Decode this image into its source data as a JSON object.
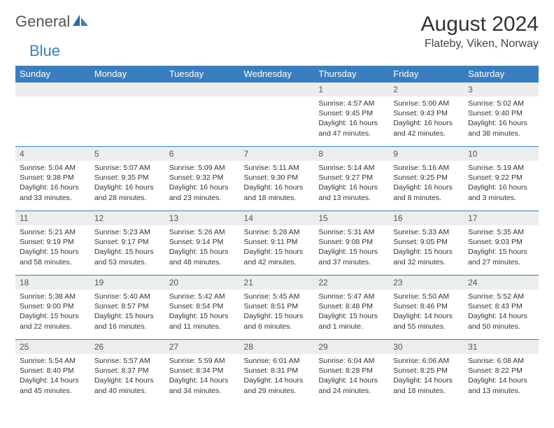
{
  "brand": {
    "part1": "General",
    "part2": "Blue"
  },
  "title": "August 2024",
  "location": "Flateby, Viken, Norway",
  "colors": {
    "accent": "#3a7ebf",
    "header_bg": "#3a7ebf",
    "row_bg": "#eceded"
  },
  "dayHeaders": [
    "Sunday",
    "Monday",
    "Tuesday",
    "Wednesday",
    "Thursday",
    "Friday",
    "Saturday"
  ],
  "weeks": [
    [
      {
        "n": "",
        "sr": "",
        "ss": "",
        "dl": ""
      },
      {
        "n": "",
        "sr": "",
        "ss": "",
        "dl": ""
      },
      {
        "n": "",
        "sr": "",
        "ss": "",
        "dl": ""
      },
      {
        "n": "",
        "sr": "",
        "ss": "",
        "dl": ""
      },
      {
        "n": "1",
        "sr": "Sunrise: 4:57 AM",
        "ss": "Sunset: 9:45 PM",
        "dl": "Daylight: 16 hours and 47 minutes."
      },
      {
        "n": "2",
        "sr": "Sunrise: 5:00 AM",
        "ss": "Sunset: 9:43 PM",
        "dl": "Daylight: 16 hours and 42 minutes."
      },
      {
        "n": "3",
        "sr": "Sunrise: 5:02 AM",
        "ss": "Sunset: 9:40 PM",
        "dl": "Daylight: 16 hours and 38 minutes."
      }
    ],
    [
      {
        "n": "4",
        "sr": "Sunrise: 5:04 AM",
        "ss": "Sunset: 9:38 PM",
        "dl": "Daylight: 16 hours and 33 minutes."
      },
      {
        "n": "5",
        "sr": "Sunrise: 5:07 AM",
        "ss": "Sunset: 9:35 PM",
        "dl": "Daylight: 16 hours and 28 minutes."
      },
      {
        "n": "6",
        "sr": "Sunrise: 5:09 AM",
        "ss": "Sunset: 9:32 PM",
        "dl": "Daylight: 16 hours and 23 minutes."
      },
      {
        "n": "7",
        "sr": "Sunrise: 5:11 AM",
        "ss": "Sunset: 9:30 PM",
        "dl": "Daylight: 16 hours and 18 minutes."
      },
      {
        "n": "8",
        "sr": "Sunrise: 5:14 AM",
        "ss": "Sunset: 9:27 PM",
        "dl": "Daylight: 16 hours and 13 minutes."
      },
      {
        "n": "9",
        "sr": "Sunrise: 5:16 AM",
        "ss": "Sunset: 9:25 PM",
        "dl": "Daylight: 16 hours and 8 minutes."
      },
      {
        "n": "10",
        "sr": "Sunrise: 5:19 AM",
        "ss": "Sunset: 9:22 PM",
        "dl": "Daylight: 16 hours and 3 minutes."
      }
    ],
    [
      {
        "n": "11",
        "sr": "Sunrise: 5:21 AM",
        "ss": "Sunset: 9:19 PM",
        "dl": "Daylight: 15 hours and 58 minutes."
      },
      {
        "n": "12",
        "sr": "Sunrise: 5:23 AM",
        "ss": "Sunset: 9:17 PM",
        "dl": "Daylight: 15 hours and 53 minutes."
      },
      {
        "n": "13",
        "sr": "Sunrise: 5:26 AM",
        "ss": "Sunset: 9:14 PM",
        "dl": "Daylight: 15 hours and 48 minutes."
      },
      {
        "n": "14",
        "sr": "Sunrise: 5:28 AM",
        "ss": "Sunset: 9:11 PM",
        "dl": "Daylight: 15 hours and 42 minutes."
      },
      {
        "n": "15",
        "sr": "Sunrise: 5:31 AM",
        "ss": "Sunset: 9:08 PM",
        "dl": "Daylight: 15 hours and 37 minutes."
      },
      {
        "n": "16",
        "sr": "Sunrise: 5:33 AM",
        "ss": "Sunset: 9:05 PM",
        "dl": "Daylight: 15 hours and 32 minutes."
      },
      {
        "n": "17",
        "sr": "Sunrise: 5:35 AM",
        "ss": "Sunset: 9:03 PM",
        "dl": "Daylight: 15 hours and 27 minutes."
      }
    ],
    [
      {
        "n": "18",
        "sr": "Sunrise: 5:38 AM",
        "ss": "Sunset: 9:00 PM",
        "dl": "Daylight: 15 hours and 22 minutes."
      },
      {
        "n": "19",
        "sr": "Sunrise: 5:40 AM",
        "ss": "Sunset: 8:57 PM",
        "dl": "Daylight: 15 hours and 16 minutes."
      },
      {
        "n": "20",
        "sr": "Sunrise: 5:42 AM",
        "ss": "Sunset: 8:54 PM",
        "dl": "Daylight: 15 hours and 11 minutes."
      },
      {
        "n": "21",
        "sr": "Sunrise: 5:45 AM",
        "ss": "Sunset: 8:51 PM",
        "dl": "Daylight: 15 hours and 6 minutes."
      },
      {
        "n": "22",
        "sr": "Sunrise: 5:47 AM",
        "ss": "Sunset: 8:48 PM",
        "dl": "Daylight: 15 hours and 1 minute."
      },
      {
        "n": "23",
        "sr": "Sunrise: 5:50 AM",
        "ss": "Sunset: 8:46 PM",
        "dl": "Daylight: 14 hours and 55 minutes."
      },
      {
        "n": "24",
        "sr": "Sunrise: 5:52 AM",
        "ss": "Sunset: 8:43 PM",
        "dl": "Daylight: 14 hours and 50 minutes."
      }
    ],
    [
      {
        "n": "25",
        "sr": "Sunrise: 5:54 AM",
        "ss": "Sunset: 8:40 PM",
        "dl": "Daylight: 14 hours and 45 minutes."
      },
      {
        "n": "26",
        "sr": "Sunrise: 5:57 AM",
        "ss": "Sunset: 8:37 PM",
        "dl": "Daylight: 14 hours and 40 minutes."
      },
      {
        "n": "27",
        "sr": "Sunrise: 5:59 AM",
        "ss": "Sunset: 8:34 PM",
        "dl": "Daylight: 14 hours and 34 minutes."
      },
      {
        "n": "28",
        "sr": "Sunrise: 6:01 AM",
        "ss": "Sunset: 8:31 PM",
        "dl": "Daylight: 14 hours and 29 minutes."
      },
      {
        "n": "29",
        "sr": "Sunrise: 6:04 AM",
        "ss": "Sunset: 8:28 PM",
        "dl": "Daylight: 14 hours and 24 minutes."
      },
      {
        "n": "30",
        "sr": "Sunrise: 6:06 AM",
        "ss": "Sunset: 8:25 PM",
        "dl": "Daylight: 14 hours and 18 minutes."
      },
      {
        "n": "31",
        "sr": "Sunrise: 6:08 AM",
        "ss": "Sunset: 8:22 PM",
        "dl": "Daylight: 14 hours and 13 minutes."
      }
    ]
  ]
}
